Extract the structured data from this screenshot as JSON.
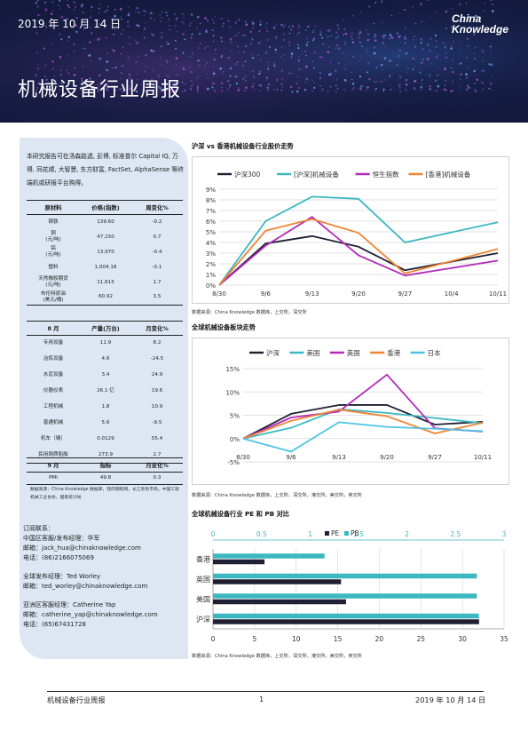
{
  "header": {
    "date": "2019 年 10 月 14 日",
    "title": "机械设备行业周报",
    "logo_line1": "China",
    "logo_line2": "Knowledge"
  },
  "sidebar": {
    "intro": "本研究报告可在汤森路透, 彭博, 标准普尔 Capital IQ, 万得, 同花顺, 大智慧, 东方财富, FactSet, AlphaSense 等终端机或研报平台购得。",
    "materials": {
      "headers": [
        "原材料",
        "价格(指数)",
        "周变化%"
      ],
      "rows": [
        [
          "钢铁",
          "139.60",
          "-0.2"
        ],
        [
          "铜\n(元/吨)",
          "47,150",
          "0.7"
        ],
        [
          "铝\n(元/吨)",
          "13,970",
          "-0.4"
        ],
        [
          "塑料",
          "1,004.18",
          "-0.1"
        ],
        [
          "天然橡胶期货\n(元/吨)",
          "11,615",
          "1.7"
        ],
        [
          "布伦特原油\n(美元/桶)",
          "60.92",
          "3.5"
        ]
      ]
    },
    "august": {
      "headers": [
        "8 月",
        "产量(万台)",
        "月变化%"
      ],
      "rows": [
        [
          "专用设备",
          "11.9",
          "8.2"
        ],
        [
          "冶炼设备",
          "4.6",
          "-24.5"
        ],
        [
          "水泥设备",
          "3.4",
          "24.9"
        ],
        [
          "仪器仪表",
          "26.1 亿",
          "19.6"
        ],
        [
          "工程机械",
          "1.8",
          "10.9"
        ],
        [
          "普通机械",
          "5.6",
          "-9.5"
        ],
        [
          "机车（辆）",
          "0.0129",
          "55.4"
        ],
        [
          "民用钢质船舶",
          "273.9",
          "2.7"
        ]
      ]
    },
    "september": {
      "headers": [
        "9 月",
        "指标",
        "月变化%"
      ],
      "rows": [
        [
          "PMI",
          "49.8",
          "0.3"
        ]
      ]
    },
    "source": "数据来源：China Knowledge 数据库，我的钢铁网，长江有色市场，中国工程机械工业协会，国家统计局",
    "contacts": [
      {
        "lines": [
          "订阅联系：",
          "中国区客服/发布经理：华军",
          "邮箱：jack_hua@chinaknowledge.com",
          "电话：(86)2166075069"
        ]
      },
      {
        "lines": [
          "全球发布经理：Ted Worley",
          "邮箱：ted_worley@chinaknowledge.com"
        ]
      },
      {
        "lines": [
          "亚洲区客服经理：Catherine Yap",
          "邮箱：catherine_yap@chinaknowledge.com",
          "电话：(65)67431728"
        ]
      }
    ]
  },
  "chart1_title": "沪深 vs 香港机械设备行业股价走势",
  "chart1_source": "数据来源：China Knowledge 数据库，上交所，深交所",
  "chart2_title": "全球机械设备板块走势",
  "chart2_source": "数据来源：China Knowledge 数据库，上交所，深交所，港交所，美交所，英交所",
  "chart3_title": "全球机械设备行业 PE 和 PB 对比",
  "chart3_source": "数据来源：China Knowledge 数据库，上交所，深交所，港交所，美交所，英交所",
  "chart_data": [
    {
      "type": "line",
      "categories": [
        "8/30",
        "9/6",
        "9/13",
        "9/20",
        "9/27",
        "10/4",
        "10/11"
      ],
      "ylim": [
        0,
        9
      ],
      "yticks": [
        "0%",
        "1%",
        "2%",
        "3%",
        "4%",
        "5%",
        "6%",
        "7%",
        "8%",
        "9%"
      ],
      "legend": "top",
      "series": [
        {
          "name": "沪深300",
          "color": "#1f2033",
          "x": [
            0,
            1,
            2,
            3,
            4,
            6
          ],
          "values": [
            0,
            3.9,
            4.6,
            3.6,
            1.4,
            3.0
          ]
        },
        {
          "name": "[沪深]机械设备",
          "color": "#3bb7c1",
          "x": [
            0,
            1,
            2,
            3,
            4,
            6
          ],
          "values": [
            0,
            6.0,
            8.3,
            8.1,
            4.0,
            5.9
          ]
        },
        {
          "name": "恒生指数",
          "color": "#b12ab8",
          "x": [
            0,
            1,
            2,
            3,
            4,
            6
          ],
          "values": [
            0,
            3.7,
            6.4,
            2.8,
            0.9,
            2.3
          ]
        },
        {
          "name": "[香港]机械设备",
          "color": "#ee8434",
          "x": [
            0,
            1,
            2,
            3,
            4,
            6
          ],
          "values": [
            0,
            5.1,
            6.2,
            4.9,
            1.1,
            3.4
          ]
        }
      ]
    },
    {
      "type": "line",
      "categories": [
        "8/30",
        "9/6",
        "9/13",
        "9/20",
        "9/27",
        "10/11"
      ],
      "ylim": [
        -5,
        15
      ],
      "yticks": [
        "-5%",
        "0%",
        "5%",
        "10%",
        "15%"
      ],
      "legend": "top",
      "series": [
        {
          "name": "沪深",
          "color": "#1f2033",
          "values": [
            0,
            5.3,
            7.2,
            7.2,
            3.0,
            3.6
          ]
        },
        {
          "name": "美国",
          "color": "#3bb7c1",
          "values": [
            0,
            2.3,
            6.3,
            5.5,
            4.4,
            3.3
          ]
        },
        {
          "name": "英国",
          "color": "#b12ab8",
          "values": [
            0,
            4.5,
            5.8,
            13.7,
            2.2,
            1.5
          ]
        },
        {
          "name": "香港",
          "color": "#ee8434",
          "values": [
            0,
            3.8,
            6.2,
            4.8,
            1.1,
            3.4
          ]
        },
        {
          "name": "日本",
          "color": "#4cc3e6",
          "values": [
            0,
            -2.8,
            3.5,
            2.5,
            2.1,
            1.6
          ]
        }
      ]
    },
    {
      "type": "bar",
      "orientation": "horizontal",
      "categories": [
        "香港",
        "英国",
        "美国",
        "沪深"
      ],
      "legend": "top",
      "series": [
        {
          "name": "PE",
          "color": "#1f2033",
          "axis": "bottom",
          "xlim": [
            0,
            35
          ],
          "values": [
            6.2,
            15.4,
            16.0,
            32.0
          ]
        },
        {
          "name": "PB",
          "color": "#3bb7c1",
          "axis": "top",
          "xlim": [
            0,
            3
          ],
          "values": [
            1.15,
            2.72,
            2.72,
            2.74
          ]
        }
      ],
      "bottom_ticks": [
        "0",
        "5",
        "10",
        "15",
        "20",
        "25",
        "30",
        "35"
      ],
      "top_ticks": [
        "0",
        "0.5",
        "1",
        "1.5",
        "2",
        "2.5",
        "3"
      ]
    }
  ],
  "footer": {
    "left": "机械设备行业周报",
    "page": "1",
    "right": "2019 年 10 月 14 日"
  }
}
